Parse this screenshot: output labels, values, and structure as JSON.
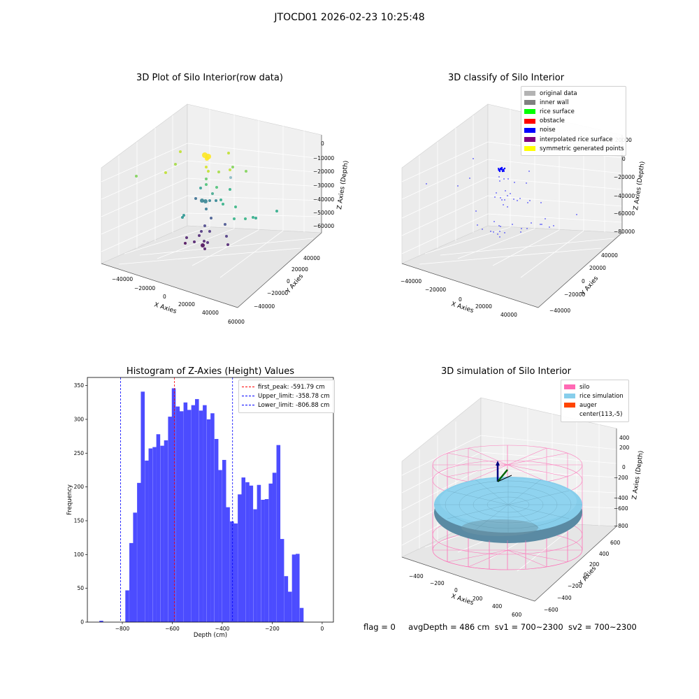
{
  "figure": {
    "suptitle": "JTOCD01 2026-02-23 10:25:48",
    "footer": {
      "flag": "flag = 0",
      "avg_depth": "avgDepth = 486 cm",
      "sv1": "sv1 = 700~2300",
      "sv2": "sv2 = 700~2300"
    }
  },
  "panel1": {
    "title": "3D Plot of Silo Interior(row data)",
    "xlabel": "X Axies",
    "ylabel": "Y Axies",
    "zlabel": "Z Axies (Depth)",
    "x_ticks": [
      "−40000",
      "−20000",
      "0",
      "20000",
      "40000",
      "60000"
    ],
    "y_ticks": [
      "40000",
      "20000",
      "0",
      "−20000",
      "−40000"
    ],
    "z_ticks": [
      "0",
      "−10000",
      "−20000",
      "−30000",
      "−40000",
      "−50000",
      "−60000"
    ]
  },
  "panel2": {
    "title": "3D classify of Silo Interior",
    "xlabel": "X Axies",
    "ylabel": "Y Axies",
    "zlabel": "Z Axies (Depth)",
    "x_ticks": [
      "−40000",
      "−20000",
      "0",
      "20000",
      "40000"
    ],
    "y_ticks": [
      "40000",
      "20000",
      "0",
      "−20000",
      "−40000"
    ],
    "z_ticks": [
      "20000",
      "0",
      "−20000",
      "−40000",
      "−60000",
      "−80000"
    ],
    "legend": [
      {
        "label": "original data",
        "color": "#b3b3b3"
      },
      {
        "label": "inner wall",
        "color": "#808080"
      },
      {
        "label": "rice surface",
        "color": "#00ff00"
      },
      {
        "label": "obstacle",
        "color": "#ff0000"
      },
      {
        "label": "noise",
        "color": "#0000ff"
      },
      {
        "label": "interpolated rice surface",
        "color": "#800080"
      },
      {
        "label": "symmetric generated points",
        "color": "#ffff00"
      }
    ]
  },
  "panel3": {
    "title": "Histogram of Z-Axies (Height) Values",
    "xlabel": "Depth (cm)",
    "ylabel": "Frequency",
    "legend": [
      {
        "label": "first_peak: -591.79 cm",
        "color": "#ff0000"
      },
      {
        "label": "Upper_limit: -358.78 cm",
        "color": "#0000ff"
      },
      {
        "label": "Lower_limit: -806.88 cm",
        "color": "#0000ff"
      }
    ]
  },
  "panel4": {
    "title": "3D simulation of Silo Interior",
    "xlabel": "X Axies",
    "ylabel": "Y Axies",
    "zlabel": "Z Axies (Depth)",
    "x_ticks": [
      "−400",
      "−200",
      "0",
      "200",
      "400",
      "600"
    ],
    "y_ticks": [
      "600",
      "400",
      "200",
      "0",
      "−200",
      "−400",
      "−600"
    ],
    "z_ticks": [
      "400",
      "200",
      "0",
      "−200",
      "−400",
      "−600",
      "−800"
    ],
    "legend": [
      {
        "label": "silo",
        "color": "#ff69b4"
      },
      {
        "label": "rice simulation",
        "color": "#87ceeb"
      },
      {
        "label": "auger",
        "color": "#ff4500"
      },
      {
        "label": "center(113,-5)",
        "color": ""
      }
    ]
  },
  "chart_data": [
    {
      "type": "scatter",
      "title": "3D Plot of Silo Interior(row data)",
      "xlabel": "X Axies",
      "ylabel": "Y Axies",
      "zlabel": "Z Axies (Depth)",
      "xlim": [
        -45000,
        60000
      ],
      "ylim": [
        -45000,
        45000
      ],
      "zlim": [
        -65000,
        2000
      ],
      "colormap": "viridis (by depth)"
    },
    {
      "type": "scatter",
      "title": "3D classify of Silo Interior",
      "xlabel": "X Axies",
      "ylabel": "Y Axies",
      "zlabel": "Z Axies (Depth)",
      "xlim": [
        -45000,
        45000
      ],
      "ylim": [
        -45000,
        45000
      ],
      "zlim": [
        -85000,
        20000
      ],
      "series_color": "#0000ff"
    },
    {
      "type": "bar",
      "title": "Histogram of Z-Axies (Height) Values",
      "xlabel": "Depth (cm)",
      "ylabel": "Frequency",
      "xlim": [
        -940,
        45
      ],
      "ylim": [
        0,
        362
      ],
      "x_ticks": [
        -800,
        -600,
        -400,
        -200,
        0
      ],
      "y_ticks": [
        0,
        50,
        100,
        150,
        200,
        250,
        300,
        350
      ],
      "bin_width": 15.5,
      "bins": [
        {
          "x": -892,
          "y": 2
        },
        {
          "x": -788,
          "y": 47
        },
        {
          "x": -772,
          "y": 117
        },
        {
          "x": -757,
          "y": 162
        },
        {
          "x": -741,
          "y": 206
        },
        {
          "x": -726,
          "y": 341
        },
        {
          "x": -710,
          "y": 239
        },
        {
          "x": -695,
          "y": 257
        },
        {
          "x": -679,
          "y": 259
        },
        {
          "x": -664,
          "y": 278
        },
        {
          "x": -648,
          "y": 261
        },
        {
          "x": -633,
          "y": 269
        },
        {
          "x": -617,
          "y": 304
        },
        {
          "x": -602,
          "y": 346
        },
        {
          "x": -586,
          "y": 319
        },
        {
          "x": -571,
          "y": 312
        },
        {
          "x": -555,
          "y": 325
        },
        {
          "x": -540,
          "y": 314
        },
        {
          "x": -524,
          "y": 321
        },
        {
          "x": -509,
          "y": 330
        },
        {
          "x": -493,
          "y": 313
        },
        {
          "x": -478,
          "y": 321
        },
        {
          "x": -462,
          "y": 300
        },
        {
          "x": -447,
          "y": 309
        },
        {
          "x": -431,
          "y": 271
        },
        {
          "x": -416,
          "y": 225
        },
        {
          "x": -400,
          "y": 240
        },
        {
          "x": -385,
          "y": 170
        },
        {
          "x": -369,
          "y": 149
        },
        {
          "x": -354,
          "y": 146
        },
        {
          "x": -338,
          "y": 189
        },
        {
          "x": -323,
          "y": 214
        },
        {
          "x": -307,
          "y": 207
        },
        {
          "x": -292,
          "y": 202
        },
        {
          "x": -276,
          "y": 167
        },
        {
          "x": -261,
          "y": 203
        },
        {
          "x": -245,
          "y": 181
        },
        {
          "x": -230,
          "y": 182
        },
        {
          "x": -214,
          "y": 205
        },
        {
          "x": -199,
          "y": 221
        },
        {
          "x": -183,
          "y": 262
        },
        {
          "x": -168,
          "y": 123
        },
        {
          "x": -152,
          "y": 68
        },
        {
          "x": -137,
          "y": 45
        },
        {
          "x": -121,
          "y": 100
        },
        {
          "x": -106,
          "y": 101
        },
        {
          "x": -90,
          "y": 21
        }
      ],
      "bar_color": "#4c4cff",
      "vlines": [
        {
          "label": "first_peak: -591.79 cm",
          "x": -591.79,
          "color": "#ff0000"
        },
        {
          "label": "Upper_limit: -358.78 cm",
          "x": -358.78,
          "color": "#0000ff"
        },
        {
          "label": "Lower_limit: -806.88 cm",
          "x": -806.88,
          "color": "#0000ff"
        }
      ],
      "legend_position": "top-right"
    },
    {
      "type": "surface",
      "title": "3D simulation of Silo Interior",
      "xlabel": "X Axies",
      "ylabel": "Y Axies",
      "zlabel": "Z Axies (Depth)",
      "xlim": [
        -500,
        700
      ],
      "ylim": [
        -650,
        650
      ],
      "zlim": [
        -900,
        480
      ],
      "legend_position": "top-right"
    }
  ]
}
